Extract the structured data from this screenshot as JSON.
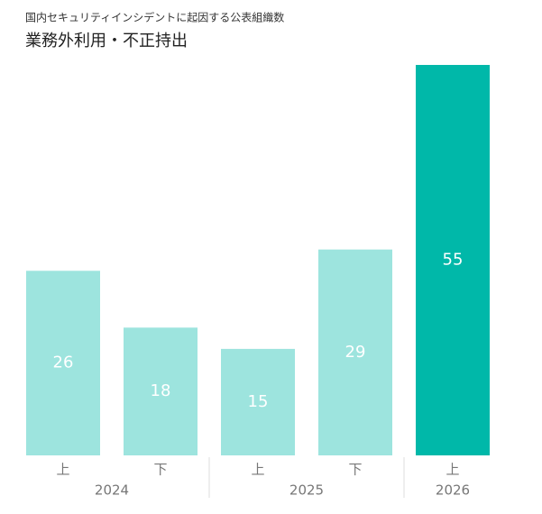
{
  "chart_data": {
    "type": "bar",
    "subtitle": "国内セキュリティインシデントに起因する公表組織数",
    "title": "業務外利用・不正持出",
    "groups": [
      {
        "name": "2024",
        "categories": [
          "上",
          "下"
        ],
        "values": [
          26,
          18
        ],
        "colors": [
          "#9de4de",
          "#9de4de"
        ]
      },
      {
        "name": "2025",
        "categories": [
          "上",
          "下"
        ],
        "values": [
          15,
          29
        ],
        "colors": [
          "#9de4de",
          "#9de4de"
        ]
      },
      {
        "name": "2026",
        "categories": [
          "上"
        ],
        "values": [
          55
        ],
        "colors": [
          "#00b8a9"
        ]
      }
    ]
  }
}
